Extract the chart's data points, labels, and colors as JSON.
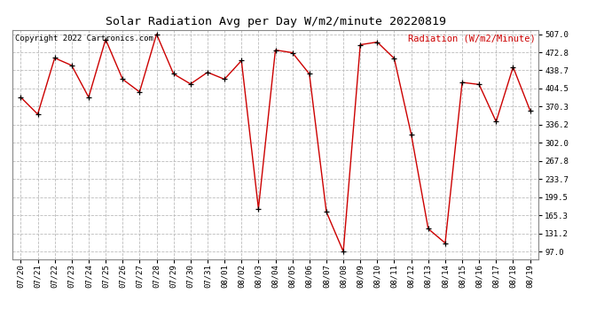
{
  "title": "Solar Radiation Avg per Day W/m2/minute 20220819",
  "copyright": "Copyright 2022 Cartronics.com",
  "legend_label": "Radiation (W/m2/Minute)",
  "dates": [
    "07/20",
    "07/21",
    "07/22",
    "07/23",
    "07/24",
    "07/25",
    "07/26",
    "07/27",
    "07/28",
    "07/29",
    "07/30",
    "07/31",
    "08/01",
    "08/02",
    "08/03",
    "08/04",
    "08/05",
    "08/06",
    "08/07",
    "08/08",
    "08/09",
    "08/10",
    "08/11",
    "08/12",
    "08/13",
    "08/14",
    "08/15",
    "08/16",
    "08/17",
    "08/18",
    "08/19"
  ],
  "values": [
    388,
    356,
    462,
    448,
    388,
    497,
    422,
    398,
    507,
    432,
    413,
    435,
    422,
    457,
    178,
    477,
    472,
    432,
    172,
    97,
    487,
    492,
    461,
    318,
    140,
    113,
    416,
    412,
    342,
    445,
    363
  ],
  "line_color": "#cc0000",
  "marker_color": "#000000",
  "background_color": "#ffffff",
  "grid_color": "#bbbbbb",
  "title_fontsize": 9.5,
  "copyright_fontsize": 6.5,
  "legend_fontsize": 7.5,
  "tick_fontsize": 6.5,
  "ytick_values": [
    97.0,
    131.2,
    165.3,
    199.5,
    233.7,
    267.8,
    302.0,
    336.2,
    370.3,
    404.5,
    438.7,
    472.8,
    507.0
  ],
  "ymin": 83.0,
  "ymax": 515.0
}
